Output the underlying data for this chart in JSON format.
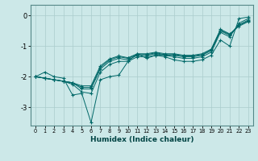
{
  "xlabel": "Humidex (Indice chaleur)",
  "ylabel": "",
  "background_color": "#cce8e8",
  "grid_color": "#aacccc",
  "line_color": "#006868",
  "xlim": [
    -0.5,
    23.5
  ],
  "ylim": [
    -3.6,
    0.35
  ],
  "yticks": [
    0,
    -1,
    -2,
    -3
  ],
  "xticks": [
    0,
    1,
    2,
    3,
    4,
    5,
    6,
    7,
    8,
    9,
    10,
    11,
    12,
    13,
    14,
    15,
    16,
    17,
    18,
    19,
    20,
    21,
    22,
    23
  ],
  "lines": [
    [
      -2.0,
      -1.85,
      -2.0,
      -2.05,
      -2.6,
      -2.55,
      -3.5,
      -2.1,
      -2.0,
      -1.95,
      -1.5,
      -1.25,
      -1.4,
      -1.3,
      -1.35,
      -1.45,
      -1.5,
      -1.5,
      -1.45,
      -1.3,
      -0.8,
      -1.0,
      -0.1,
      -0.05
    ],
    [
      -2.0,
      -2.05,
      -2.1,
      -2.15,
      -2.25,
      -2.5,
      -2.55,
      -1.85,
      -1.6,
      -1.5,
      -1.5,
      -1.35,
      -1.35,
      -1.3,
      -1.3,
      -1.35,
      -1.4,
      -1.4,
      -1.35,
      -1.2,
      -0.55,
      -0.7,
      -0.25,
      -0.1
    ],
    [
      -2.0,
      -2.05,
      -2.1,
      -2.15,
      -2.2,
      -2.4,
      -2.4,
      -1.75,
      -1.5,
      -1.4,
      -1.45,
      -1.3,
      -1.3,
      -1.25,
      -1.3,
      -1.3,
      -1.35,
      -1.35,
      -1.3,
      -1.15,
      -0.5,
      -0.65,
      -0.3,
      -0.15
    ],
    [
      -2.0,
      -2.05,
      -2.1,
      -2.15,
      -2.2,
      -2.35,
      -2.35,
      -1.7,
      -1.45,
      -1.35,
      -1.4,
      -1.28,
      -1.28,
      -1.22,
      -1.28,
      -1.28,
      -1.32,
      -1.32,
      -1.28,
      -1.12,
      -0.48,
      -0.62,
      -0.32,
      -0.18
    ],
    [
      -2.0,
      -2.05,
      -2.1,
      -2.15,
      -2.2,
      -2.3,
      -2.3,
      -1.65,
      -1.42,
      -1.32,
      -1.38,
      -1.25,
      -1.25,
      -1.2,
      -1.25,
      -1.25,
      -1.3,
      -1.3,
      -1.25,
      -1.1,
      -0.45,
      -0.6,
      -0.35,
      -0.2
    ]
  ]
}
